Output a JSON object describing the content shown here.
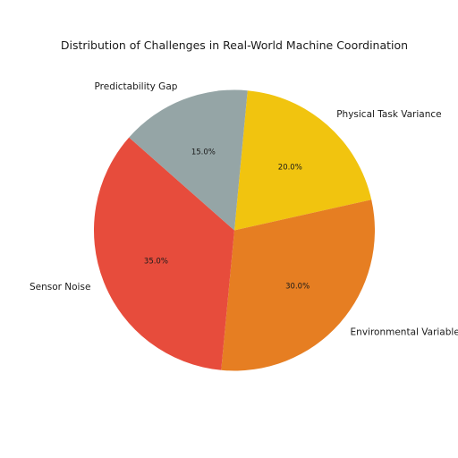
{
  "chart_data": {
    "type": "pie",
    "title": "Distribution of Challenges in Real-World Machine Coordination",
    "start_angle_deg": 84.6,
    "direction": "clockwise",
    "slices": [
      {
        "label": "Physical Task Variance",
        "value": 20.0,
        "pct_label": "20.0%",
        "color": "#F1C40F"
      },
      {
        "label": "Environmental Variables",
        "value": 30.0,
        "pct_label": "30.0%",
        "color": "#E67E22"
      },
      {
        "label": "Sensor Noise",
        "value": 35.0,
        "pct_label": "35.0%",
        "color": "#E74C3C"
      },
      {
        "label": "Predictability Gap",
        "value": 15.0,
        "pct_label": "15.0%",
        "color": "#95A5A6"
      }
    ]
  }
}
